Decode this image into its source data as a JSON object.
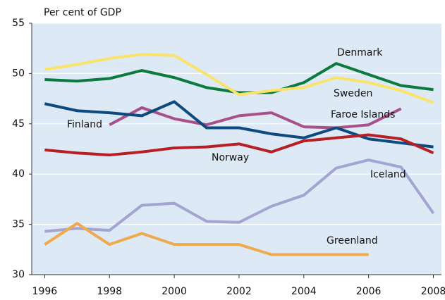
{
  "chart_data": {
    "type": "line",
    "y_label": "Per cent of GDP",
    "x": [
      1996,
      1997,
      1998,
      1999,
      2000,
      2001,
      2002,
      2003,
      2004,
      2005,
      2006,
      2007,
      2008
    ],
    "xlim": [
      1995.6,
      2008.25
    ],
    "xticks": [
      1996,
      1998,
      2000,
      2002,
      2004,
      2006,
      2008
    ],
    "ylim": [
      30,
      55
    ],
    "yticks": [
      30,
      35,
      40,
      45,
      50,
      55
    ],
    "grid": true,
    "series": [
      {
        "name": "Denmark",
        "color": "#0a7a3e",
        "values": [
          49.4,
          49.25,
          49.5,
          50.3,
          49.6,
          48.6,
          48.1,
          48.1,
          49.1,
          51.0,
          49.9,
          48.8,
          48.4
        ]
      },
      {
        "name": "Sweden",
        "color": "#f9e36a",
        "values": [
          50.4,
          50.9,
          51.5,
          51.9,
          51.8,
          49.9,
          47.9,
          48.3,
          48.6,
          49.6,
          49.1,
          48.3,
          47.1
        ]
      },
      {
        "name": "Faroe Islands",
        "color": "#a8508a",
        "values": [
          null,
          null,
          44.9,
          46.6,
          45.5,
          44.9,
          45.8,
          46.1,
          44.7,
          44.6,
          44.9,
          46.5,
          null
        ]
      },
      {
        "name": "Finland",
        "color": "#0d4a7f",
        "values": [
          47.0,
          46.3,
          46.1,
          45.8,
          47.2,
          44.6,
          44.6,
          44.0,
          43.6,
          44.6,
          43.5,
          43.1,
          42.7
        ]
      },
      {
        "name": "Norway",
        "color": "#b61f25",
        "values": [
          42.4,
          42.1,
          41.9,
          42.2,
          42.6,
          42.7,
          43.0,
          42.2,
          43.3,
          43.6,
          43.9,
          43.5,
          42.1
        ]
      },
      {
        "name": "Iceland",
        "color": "#a4a4d2",
        "values": [
          34.3,
          34.6,
          34.4,
          36.9,
          37.1,
          35.3,
          35.2,
          36.8,
          37.9,
          40.6,
          41.4,
          40.7,
          36.1
        ]
      },
      {
        "name": "Greenland",
        "color": "#f0aa4e",
        "values": [
          33.0,
          35.1,
          33.0,
          34.1,
          33.0,
          33.0,
          33.0,
          32.0,
          32.0,
          32.0,
          32.0,
          null,
          null
        ]
      }
    ]
  }
}
